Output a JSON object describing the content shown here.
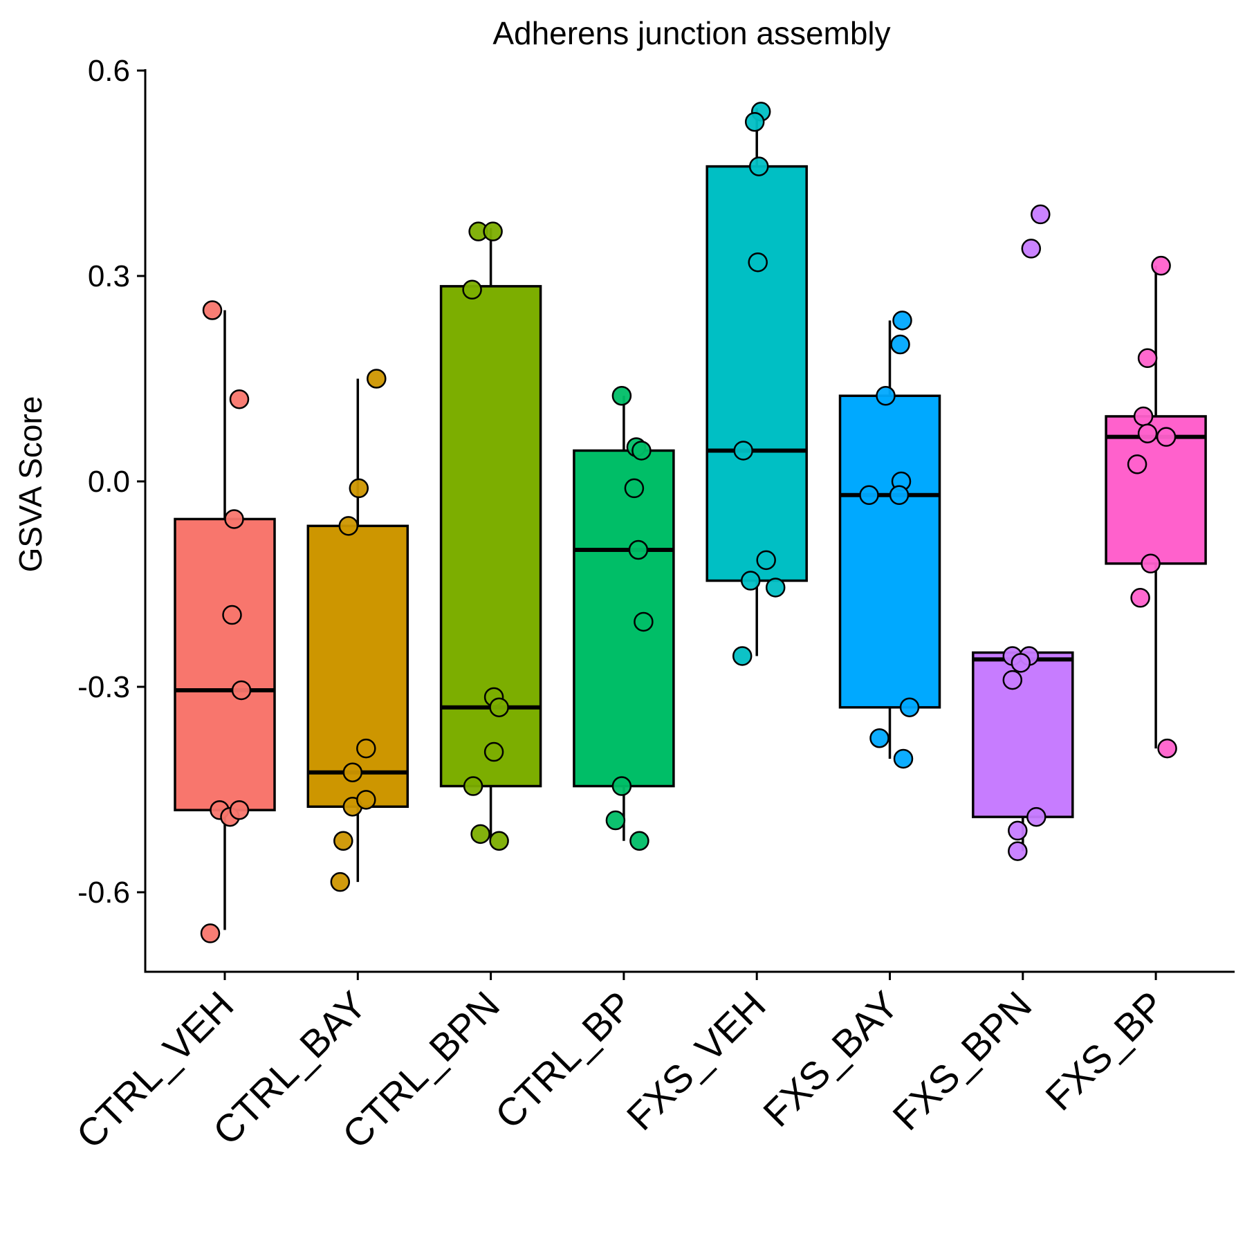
{
  "chart_data": {
    "type": "box",
    "title": "Adherens junction assembly",
    "ylabel": "GSVA Score",
    "xlabel": "",
    "ylim": [
      -0.72,
      0.6
    ],
    "yticks": [
      0.6,
      0.3,
      0.0,
      -0.3,
      -0.6
    ],
    "ytick_labels": [
      "0.6",
      "0.3",
      "0.0",
      "-0.3",
      "-0.6"
    ],
    "categories": [
      "CTRL_VEH",
      "CTRL_BAY",
      "CTRL_BPN",
      "CTRL_BP",
      "FXS_VEH",
      "FXS_BAY",
      "FXS_BPN",
      "FXS_BP"
    ],
    "colors": [
      "#F8766D",
      "#CD9600",
      "#7CAE00",
      "#00BE67",
      "#00BFC4",
      "#00A9FF",
      "#C77CFF",
      "#FF61CC"
    ],
    "boxes": [
      {
        "whisker_low": -0.655,
        "q1": -0.48,
        "median": -0.305,
        "q3": -0.055,
        "whisker_high": 0.25
      },
      {
        "whisker_low": -0.585,
        "q1": -0.475,
        "median": -0.425,
        "q3": -0.065,
        "whisker_high": 0.15
      },
      {
        "whisker_low": -0.525,
        "q1": -0.445,
        "median": -0.33,
        "q3": 0.285,
        "whisker_high": 0.37
      },
      {
        "whisker_low": -0.525,
        "q1": -0.445,
        "median": -0.1,
        "q3": 0.045,
        "whisker_high": 0.125
      },
      {
        "whisker_low": -0.255,
        "q1": -0.145,
        "median": 0.045,
        "q3": 0.46,
        "whisker_high": 0.545
      },
      {
        "whisker_low": -0.405,
        "q1": -0.33,
        "median": -0.02,
        "q3": 0.125,
        "whisker_high": 0.235
      },
      {
        "whisker_low": -0.54,
        "q1": -0.49,
        "median": -0.26,
        "q3": -0.25,
        "whisker_high": -0.25
      },
      {
        "whisker_low": -0.39,
        "q1": -0.12,
        "median": 0.065,
        "q3": 0.095,
        "whisker_high": 0.315
      }
    ],
    "points": [
      [
        [
          -0.012,
          0.25
        ],
        [
          0.014,
          0.12
        ],
        [
          0.009,
          -0.055
        ],
        [
          0.007,
          -0.195
        ],
        [
          0.016,
          -0.305
        ],
        [
          -0.005,
          -0.48
        ],
        [
          0.005,
          -0.49
        ],
        [
          0.014,
          -0.48
        ],
        [
          -0.014,
          -0.66
        ]
      ],
      [
        [
          0.018,
          0.15
        ],
        [
          0.001,
          -0.01
        ],
        [
          -0.009,
          -0.065
        ],
        [
          0.008,
          -0.39
        ],
        [
          -0.005,
          -0.425
        ],
        [
          -0.005,
          -0.475
        ],
        [
          0.008,
          -0.465
        ],
        [
          -0.014,
          -0.525
        ],
        [
          -0.017,
          -0.585
        ]
      ],
      [
        [
          -0.012,
          0.365
        ],
        [
          0.002,
          0.365
        ],
        [
          -0.018,
          0.28
        ],
        [
          0.003,
          -0.315
        ],
        [
          0.008,
          -0.33
        ],
        [
          0.003,
          -0.395
        ],
        [
          -0.017,
          -0.445
        ],
        [
          -0.01,
          -0.515
        ],
        [
          0.008,
          -0.525
        ]
      ],
      [
        [
          -0.002,
          0.125
        ],
        [
          0.012,
          0.05
        ],
        [
          0.017,
          0.045
        ],
        [
          0.01,
          -0.01
        ],
        [
          0.014,
          -0.1
        ],
        [
          0.019,
          -0.205
        ],
        [
          -0.002,
          -0.445
        ],
        [
          -0.008,
          -0.495
        ],
        [
          0.015,
          -0.525
        ]
      ],
      [
        [
          0.004,
          0.54
        ],
        [
          -0.002,
          0.525
        ],
        [
          0.002,
          0.46
        ],
        [
          0.001,
          0.32
        ],
        [
          -0.013,
          0.045
        ],
        [
          0.009,
          -0.115
        ],
        [
          -0.006,
          -0.145
        ],
        [
          0.018,
          -0.155
        ],
        [
          -0.014,
          -0.255
        ]
      ],
      [
        [
          0.012,
          0.235
        ],
        [
          0.01,
          0.2
        ],
        [
          -0.004,
          0.125
        ],
        [
          0.011,
          0.0
        ],
        [
          -0.02,
          -0.02
        ],
        [
          0.009,
          -0.02
        ],
        [
          0.019,
          -0.33
        ],
        [
          -0.01,
          -0.375
        ],
        [
          0.013,
          -0.405
        ]
      ],
      [
        [
          0.017,
          0.39
        ],
        [
          0.008,
          0.34
        ],
        [
          -0.01,
          -0.255
        ],
        [
          0.006,
          -0.255
        ],
        [
          -0.002,
          -0.265
        ],
        [
          -0.01,
          -0.29
        ],
        [
          0.013,
          -0.49
        ],
        [
          -0.005,
          -0.51
        ],
        [
          -0.005,
          -0.54
        ]
      ],
      [
        [
          0.005,
          0.315
        ],
        [
          -0.008,
          0.18
        ],
        [
          -0.012,
          0.095
        ],
        [
          -0.008,
          0.07
        ],
        [
          0.01,
          0.065
        ],
        [
          -0.018,
          0.025
        ],
        [
          -0.005,
          -0.12
        ],
        [
          -0.015,
          -0.17
        ],
        [
          0.011,
          -0.39
        ]
      ]
    ]
  }
}
